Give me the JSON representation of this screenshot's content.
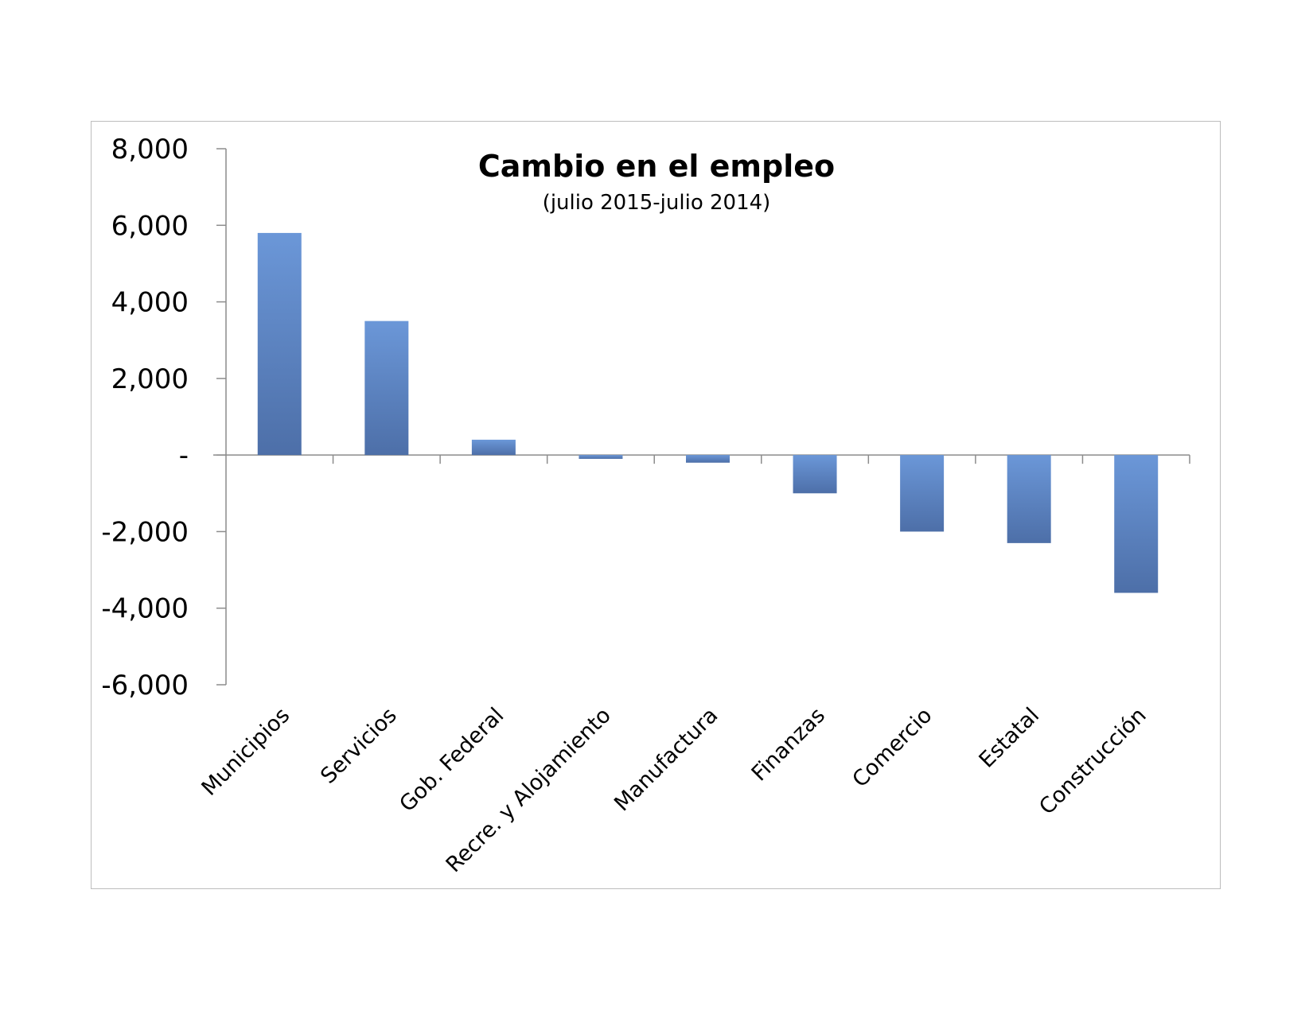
{
  "chart_data": {
    "type": "bar",
    "title": "Cambio en el empleo",
    "subtitle": "(julio 2015-julio 2014)",
    "categories": [
      "Municipios",
      "Servicios",
      "Gob. Federal",
      "Recre. y Alojamiento",
      "Manufactura",
      "Finanzas",
      "Comercio",
      "Estatal",
      "Construcción"
    ],
    "values": [
      5800,
      3500,
      400,
      -100,
      -200,
      -1000,
      -2000,
      -2300,
      -3600
    ],
    "ylim": [
      -6000,
      8000
    ],
    "yticks": [
      8000,
      6000,
      4000,
      2000,
      0,
      -2000,
      -4000,
      -6000
    ],
    "ytick_labels": [
      "8,000",
      "6,000",
      "4,000",
      "2,000",
      "-",
      "-2,000",
      "-4,000",
      "-6,000"
    ],
    "xlabel": "",
    "ylabel": "",
    "grid": false,
    "legend": "none",
    "bar_color_top": "#6b97d8",
    "bar_color_bottom": "#4d6fa8",
    "axis_color": "#8c8c8c"
  }
}
